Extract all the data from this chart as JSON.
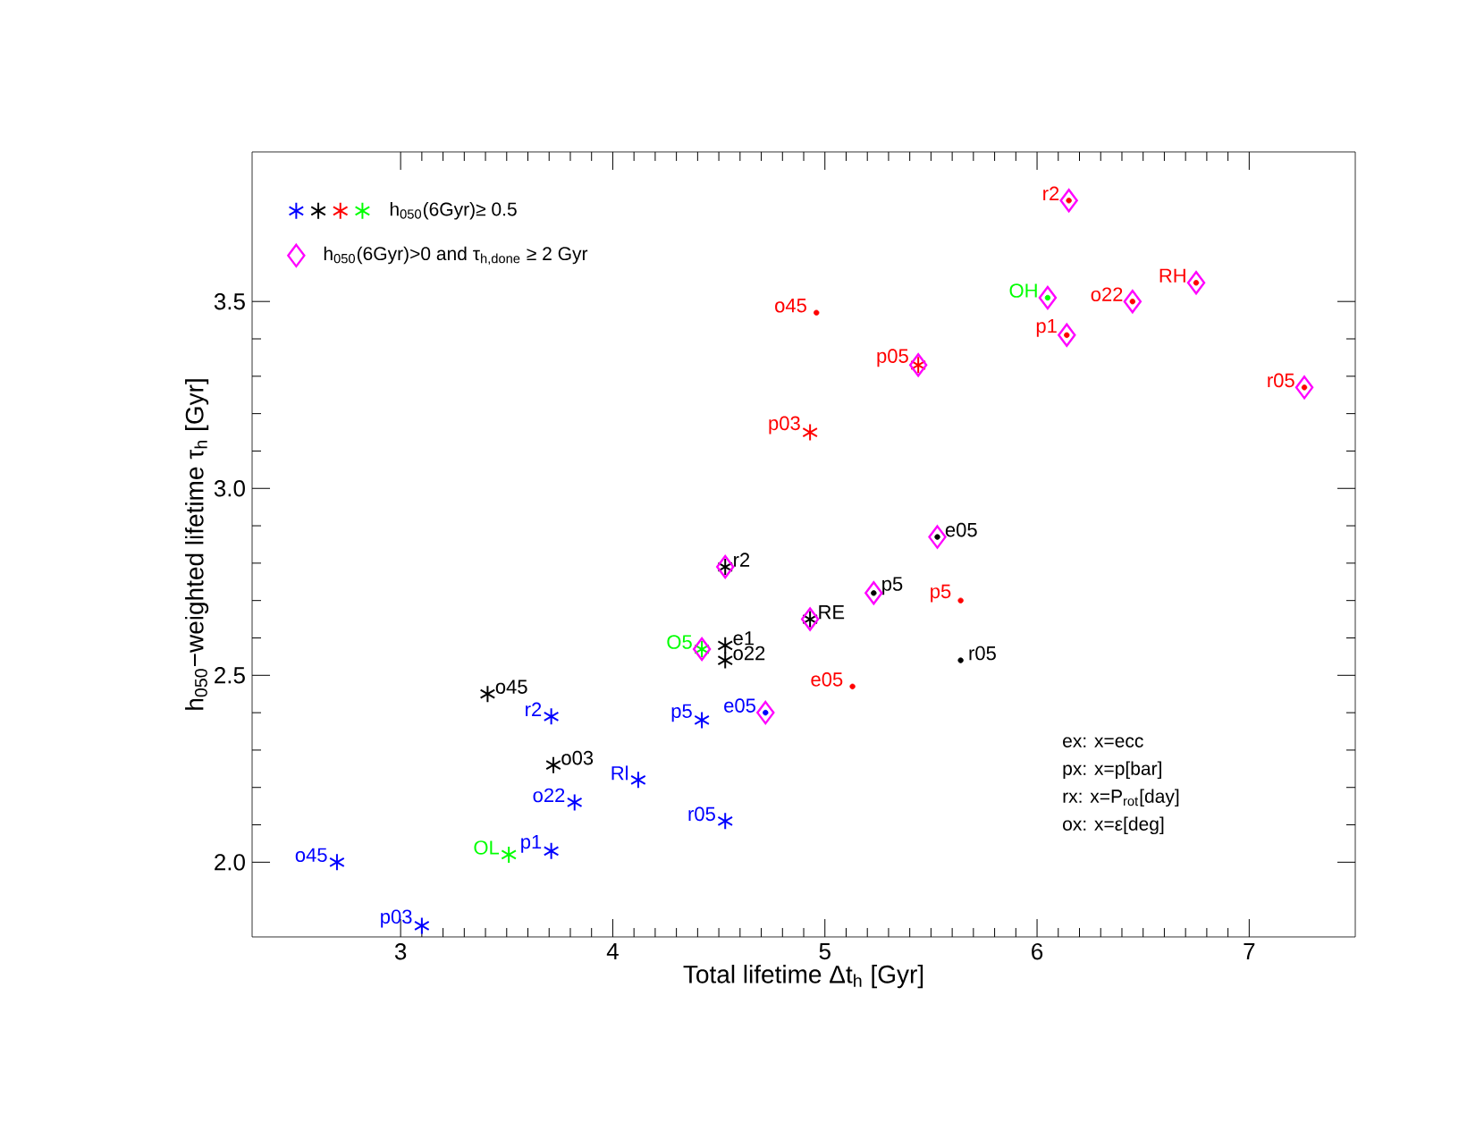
{
  "chart_data": {
    "type": "scatter",
    "xlabel": "Total lifetime Δt$_{h}$ [Gyr]",
    "ylabel": "h$_{050}$−weighted lifetime τ$_{h}$ [Gyr]",
    "xlim": [
      2.3,
      7.5
    ],
    "ylim": [
      1.8,
      3.9
    ],
    "xticks": [
      3,
      4,
      5,
      6,
      7
    ],
    "yticks": [
      {
        "value": 2.0,
        "label": "2.0"
      },
      {
        "value": 2.5,
        "label": "2.5"
      },
      {
        "value": 3.0,
        "label": "3.0"
      },
      {
        "value": 3.5,
        "label": "3.5"
      }
    ],
    "grid": false,
    "legend": "top left",
    "series": [
      {
        "marker": "cross",
        "color": "#0000ff",
        "x": [
          2.7,
          3.1,
          3.71,
          3.82,
          3.71,
          4.12,
          4.42,
          4.53
        ],
        "values": [
          2.0,
          1.83,
          2.03,
          2.16,
          2.39,
          2.22,
          2.38,
          2.11
        ]
      },
      {
        "marker": "cross",
        "color": "#000000",
        "x": [
          3.41,
          3.72,
          4.53,
          4.53,
          4.53,
          4.93
        ],
        "values": [
          2.45,
          2.26,
          2.79,
          2.58,
          2.54,
          2.65
        ]
      },
      {
        "marker": "cross",
        "color": "#ff0000",
        "x": [
          4.93,
          5.44
        ],
        "values": [
          3.15,
          3.33
        ]
      },
      {
        "name": "h$_{050}$(6Gyr)≥ 0.5",
        "marker": "cross",
        "color": "#00ff00",
        "x": [
          3.51,
          4.42
        ],
        "values": [
          2.02,
          2.57
        ]
      },
      {
        "marker": "circle",
        "color": "#ff0000",
        "x": [
          4.96,
          5.13,
          5.64,
          6.15,
          6.14,
          6.45,
          6.75,
          7.26
        ],
        "values": [
          3.47,
          2.47,
          2.7,
          3.77,
          3.41,
          3.5,
          3.55,
          3.27
        ]
      },
      {
        "marker": "circle",
        "color": "#000000",
        "x": [
          5.23,
          5.53,
          5.64
        ],
        "values": [
          2.72,
          2.87,
          2.54
        ]
      },
      {
        "marker": "circle",
        "color": "#0000ff",
        "x": [
          4.72
        ],
        "values": [
          2.4
        ]
      },
      {
        "marker": "circle",
        "color": "#00ff00",
        "x": [
          6.05
        ],
        "values": [
          3.51
        ]
      },
      {
        "name": "h$_{050}$(6Gyr)>0 and τ$_{h,done}$ ≥ 2 Gyr",
        "marker": "diamond",
        "color": "#ff00ff",
        "x": [
          4.53,
          4.93,
          4.42,
          4.72,
          5.23,
          5.53,
          5.44,
          6.15,
          6.05,
          6.14,
          6.45,
          6.75,
          7.26
        ],
        "values": [
          2.79,
          2.65,
          2.57,
          2.4,
          2.72,
          2.87,
          3.33,
          3.77,
          3.51,
          3.41,
          3.5,
          3.55,
          3.27
        ]
      }
    ],
    "annotations": [
      {
        "text": "o45",
        "x": 2.7,
        "y": 2.0
      },
      {
        "text": "p03",
        "x": 3.1,
        "y": 1.83
      },
      {
        "text": "p1",
        "x": 3.71,
        "y": 2.03
      },
      {
        "text": "o22",
        "x": 3.82,
        "y": 2.16
      },
      {
        "text": "r2",
        "x": 3.71,
        "y": 2.39
      },
      {
        "text": "Rl",
        "x": 4.12,
        "y": 2.22
      },
      {
        "text": "p5",
        "x": 4.42,
        "y": 2.38
      },
      {
        "text": "r05",
        "x": 4.53,
        "y": 2.11
      },
      {
        "text": "o45",
        "x": 3.41,
        "y": 2.45
      },
      {
        "text": "o03",
        "x": 3.72,
        "y": 2.26
      },
      {
        "text": "r2",
        "x": 4.53,
        "y": 2.79
      },
      {
        "text": "e1",
        "x": 4.53,
        "y": 2.58
      },
      {
        "text": "o22",
        "x": 4.53,
        "y": 2.54
      },
      {
        "text": "RE",
        "x": 4.93,
        "y": 2.65
      },
      {
        "text": "p03",
        "x": 4.93,
        "y": 3.15
      },
      {
        "text": "p05",
        "x": 5.44,
        "y": 3.33
      },
      {
        "text": "OL",
        "x": 3.51,
        "y": 2.02
      },
      {
        "text": "O5",
        "x": 4.42,
        "y": 2.57
      },
      {
        "text": "o45",
        "x": 4.96,
        "y": 3.47
      },
      {
        "text": "e05",
        "x": 5.13,
        "y": 2.47
      },
      {
        "text": "p5",
        "x": 5.64,
        "y": 2.7
      },
      {
        "text": "r2",
        "x": 6.15,
        "y": 3.77
      },
      {
        "text": "p1",
        "x": 6.14,
        "y": 3.41
      },
      {
        "text": "o22",
        "x": 6.45,
        "y": 3.5
      },
      {
        "text": "RH",
        "x": 6.75,
        "y": 3.55
      },
      {
        "text": "r05",
        "x": 7.26,
        "y": 3.27
      },
      {
        "text": "p5",
        "x": 5.23,
        "y": 2.72
      },
      {
        "text": "e05",
        "x": 5.53,
        "y": 2.87
      },
      {
        "text": "r05",
        "x": 5.64,
        "y": 2.54
      },
      {
        "text": "e05",
        "x": 4.72,
        "y": 2.4
      },
      {
        "text": "OH",
        "x": 6.05,
        "y": 3.51
      },
      "ex: x=ecc",
      "px: x=p[bar]",
      "rx: x=P$_{rot}$[day]",
      "ox: x=ε[deg]"
    ]
  }
}
